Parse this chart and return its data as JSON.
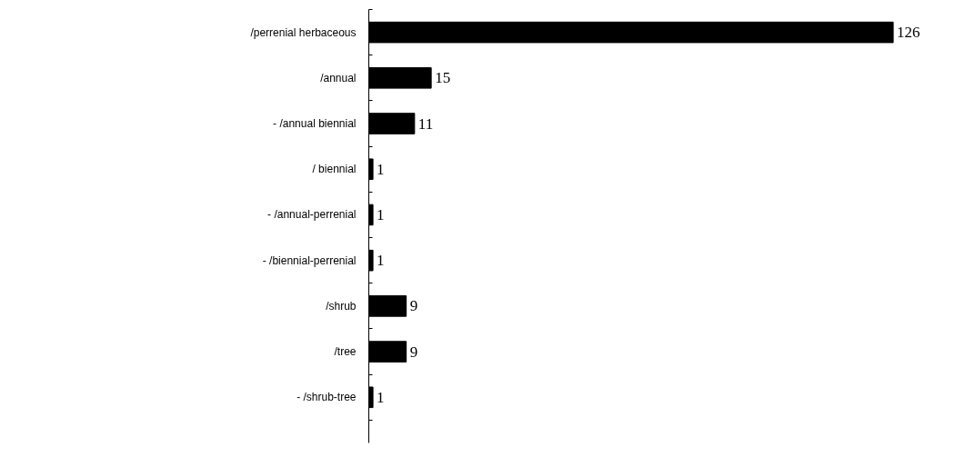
{
  "chart_data": {
    "type": "bar",
    "orientation": "horizontal",
    "categories": [
      "/perrenial herbaceous",
      "/annual",
      "- /annual biennial",
      "/ biennial",
      "- /annual-perrenial",
      "- /biennial-perrenial",
      "/shrub",
      "/tree",
      "- /shrub-tree"
    ],
    "values": [
      126,
      15,
      11,
      1,
      1,
      1,
      9,
      9,
      1
    ],
    "color": "#000000",
    "data_labels": true,
    "grid": false
  }
}
